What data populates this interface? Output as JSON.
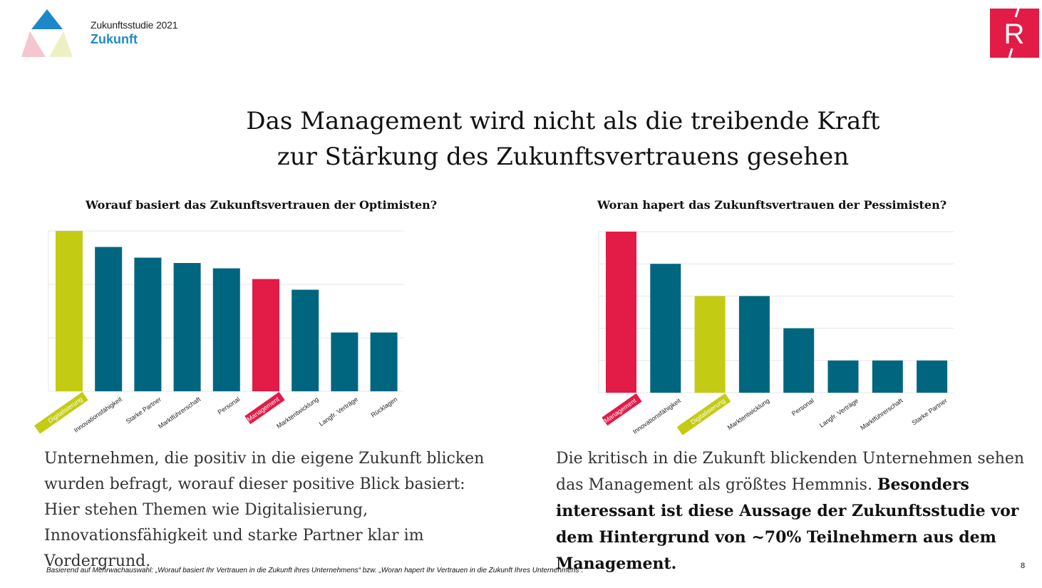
{
  "header": {
    "study_label": "Zukunftsstudie 2021",
    "brand_name": "Zukunft",
    "corner_logo_letter": "R"
  },
  "title": {
    "line1": "Das Management wird nicht als die treibende Kraft",
    "line2": "zur Stärkung des Zukunftsvertrauens gesehen"
  },
  "colors": {
    "teal": "#006680",
    "lime": "#c3cb13",
    "red": "#e21b47",
    "brand_blue": "#1f8cc6",
    "grid": "#e6e6e6"
  },
  "chart_data": [
    {
      "type": "bar",
      "title": "Worauf basiert das Zukunftsvertrauen der Optimisten?",
      "xlabel": "",
      "ylabel": "",
      "categories": [
        "Digitalisierung",
        "Innovationsfähigkeit",
        "Starke Partner",
        "Marktführerschaft",
        "Personal",
        "Management",
        "Marktentwicklung",
        "Langfr. Verträge",
        "Rücklagen"
      ],
      "values": [
        30,
        27,
        25,
        24,
        23,
        21,
        19,
        11,
        11
      ],
      "highlight": {
        "Digitalisierung": "lime",
        "Management": "red"
      },
      "ylim": [
        0,
        30
      ],
      "grid_steps": 3,
      "grid": true,
      "ticks_visible": false
    },
    {
      "type": "bar",
      "title": "Woran hapert das Zukunftsvertrauen der Pessimisten?",
      "xlabel": "",
      "ylabel": "",
      "categories": [
        "Management",
        "Innovationsfähigkeit",
        "Digitalisierung",
        "Marktentwicklung",
        "Personal",
        "Langfr. Verträge",
        "Marktführerschaft",
        "Starke Partner"
      ],
      "values": [
        5,
        4,
        3,
        3,
        2,
        1,
        1,
        1
      ],
      "highlight": {
        "Management": "red",
        "Digitalisierung": "lime"
      },
      "ylim": [
        0,
        5
      ],
      "grid_steps": 5,
      "grid": true,
      "ticks_visible": false
    }
  ],
  "paragraphs": {
    "left": "Unternehmen, die positiv in die eigene Zukunft blicken wurden befragt, worauf dieser positive Blick basiert: Hier stehen Themen wie Digitalisierung, Innovationsfähigkeit und starke Partner klar im Vordergrund.",
    "right_normal": "Die kritisch in die Zukunft blickenden Unternehmen sehen das Management als größtes Hemmnis. ",
    "right_bold": "Besonders interessant ist diese Aussage der Zukunftsstudie vor dem Hintergrund von ~70% Teilnehmern aus dem Management."
  },
  "footnote": "Basierend auf Mehrwachauswahl: „Worauf basiert Ihr Vertrauen in die Zukunft ihres Unternehmens“ bzw. „Woran hapert Ihr Vertrauen in die Zukunft Ihres Unternehmens“.",
  "page_number": "8"
}
